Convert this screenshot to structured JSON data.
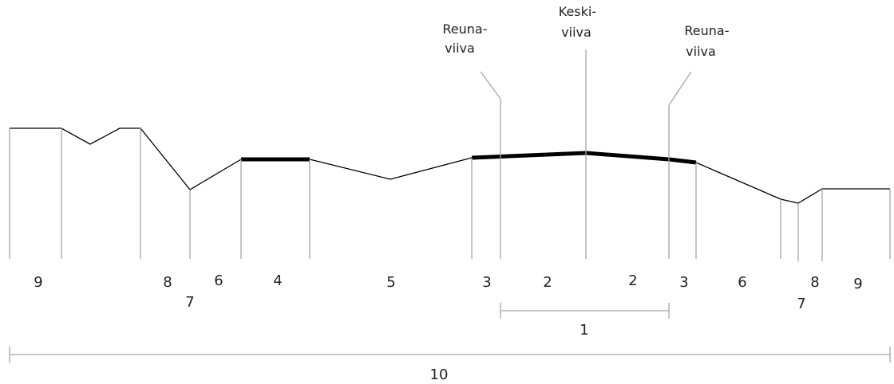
{
  "diagram": {
    "annotations": {
      "edge_left": [
        "Reuna-",
        "viiva"
      ],
      "center": [
        "Keski-",
        "viiva"
      ],
      "edge_right": [
        "Reuna-",
        "viiva"
      ]
    },
    "zones": {
      "z9_left": "9",
      "z8_left": "8",
      "z7_left": "7",
      "z6_left": "6",
      "z4": "4",
      "z5": "5",
      "z3_left": "3",
      "z2_left": "2",
      "z2_right": "2",
      "z3_right": "3",
      "z6_right": "6",
      "z7_right": "7",
      "z8_right": "8",
      "z9_right": "9"
    },
    "dimensions": {
      "carriageway": "1",
      "total_width": "10"
    }
  }
}
